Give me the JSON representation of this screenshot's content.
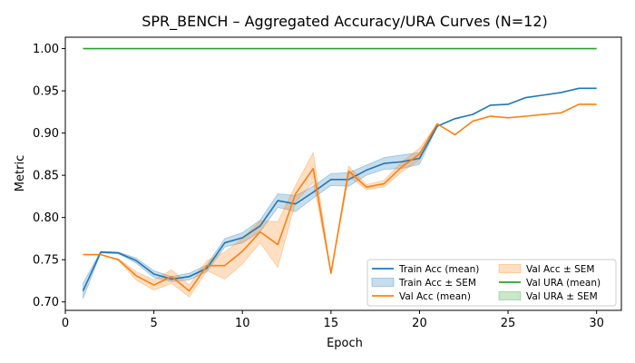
{
  "chart_data": {
    "type": "line",
    "title": "SPR_BENCH – Aggregated Accuracy/URA Curves (N=12)",
    "xlabel": "Epoch",
    "ylabel": "Metric",
    "xlim": [
      0,
      31.4
    ],
    "ylim": [
      0.69,
      1.0135
    ],
    "xticks": [
      0,
      5,
      10,
      15,
      20,
      25,
      30
    ],
    "yticks": [
      0.7,
      0.75,
      0.8,
      0.85,
      0.9,
      0.95,
      1.0
    ],
    "grid": false,
    "legend_position": "bottom-right",
    "x": [
      1,
      2,
      3,
      4,
      5,
      6,
      7,
      8,
      9,
      10,
      11,
      12,
      13,
      14,
      15,
      16,
      17,
      18,
      19,
      20,
      21,
      22,
      23,
      24,
      25,
      26,
      27,
      28,
      29,
      30
    ],
    "series": [
      {
        "name": "Train Acc (mean)",
        "band_name": "Train Acc ± SEM",
        "color": "#1f77b4",
        "values": [
          0.713,
          0.759,
          0.758,
          0.749,
          0.733,
          0.727,
          0.73,
          0.74,
          0.77,
          0.776,
          0.79,
          0.82,
          0.816,
          0.83,
          0.845,
          0.845,
          0.856,
          0.864,
          0.866,
          0.87,
          0.908,
          0.917,
          0.922,
          0.933,
          0.934,
          0.942,
          0.945,
          0.948,
          0.953,
          0.953
        ],
        "sem_lower": [
          0.704,
          0.758,
          0.757,
          0.746,
          0.729,
          0.724,
          0.726,
          0.736,
          0.765,
          0.77,
          0.783,
          0.812,
          0.807,
          0.823,
          0.838,
          0.837,
          0.85,
          0.857,
          0.858,
          0.863,
          0.908,
          0.917,
          0.922,
          0.933,
          0.934,
          0.942,
          0.945,
          0.948,
          0.953,
          0.953
        ],
        "sem_upper": [
          0.722,
          0.76,
          0.759,
          0.752,
          0.737,
          0.73,
          0.734,
          0.744,
          0.775,
          0.782,
          0.797,
          0.828,
          0.826,
          0.837,
          0.852,
          0.853,
          0.862,
          0.871,
          0.874,
          0.877,
          0.908,
          0.917,
          0.922,
          0.933,
          0.934,
          0.942,
          0.945,
          0.948,
          0.953,
          0.953
        ]
      },
      {
        "name": "Val Acc (mean)",
        "band_name": "Val Acc ± SEM",
        "color": "#ff7f0e",
        "values": [
          0.756,
          0.756,
          0.75,
          0.731,
          0.72,
          0.73,
          0.713,
          0.743,
          0.743,
          0.76,
          0.783,
          0.768,
          0.828,
          0.858,
          0.734,
          0.855,
          0.836,
          0.84,
          0.86,
          0.875,
          0.911,
          0.898,
          0.914,
          0.92,
          0.918,
          0.92,
          0.922,
          0.924,
          0.934,
          0.934
        ],
        "sem_lower": [
          0.756,
          0.756,
          0.749,
          0.726,
          0.714,
          0.722,
          0.706,
          0.737,
          0.727,
          0.745,
          0.77,
          0.741,
          0.818,
          0.842,
          0.734,
          0.849,
          0.833,
          0.836,
          0.854,
          0.868,
          0.911,
          0.898,
          0.914,
          0.92,
          0.918,
          0.92,
          0.922,
          0.924,
          0.934,
          0.934
        ],
        "sem_upper": [
          0.756,
          0.756,
          0.751,
          0.736,
          0.726,
          0.738,
          0.72,
          0.749,
          0.759,
          0.775,
          0.796,
          0.795,
          0.838,
          0.877,
          0.734,
          0.861,
          0.839,
          0.844,
          0.866,
          0.882,
          0.911,
          0.898,
          0.914,
          0.92,
          0.918,
          0.92,
          0.922,
          0.924,
          0.934,
          0.934
        ]
      },
      {
        "name": "Val URA (mean)",
        "band_name": "Val URA ± SEM",
        "color": "#2ca02c",
        "values": [
          1.0,
          1.0,
          1.0,
          1.0,
          1.0,
          1.0,
          1.0,
          1.0,
          1.0,
          1.0,
          1.0,
          1.0,
          1.0,
          1.0,
          1.0,
          1.0,
          1.0,
          1.0,
          1.0,
          1.0,
          1.0,
          1.0,
          1.0,
          1.0,
          1.0,
          1.0,
          1.0,
          1.0,
          1.0,
          1.0
        ],
        "sem_lower": [
          1.0,
          1.0,
          1.0,
          1.0,
          1.0,
          1.0,
          1.0,
          1.0,
          1.0,
          1.0,
          1.0,
          1.0,
          1.0,
          1.0,
          1.0,
          1.0,
          1.0,
          1.0,
          1.0,
          1.0,
          1.0,
          1.0,
          1.0,
          1.0,
          1.0,
          1.0,
          1.0,
          1.0,
          1.0,
          1.0
        ],
        "sem_upper": [
          1.0,
          1.0,
          1.0,
          1.0,
          1.0,
          1.0,
          1.0,
          1.0,
          1.0,
          1.0,
          1.0,
          1.0,
          1.0,
          1.0,
          1.0,
          1.0,
          1.0,
          1.0,
          1.0,
          1.0,
          1.0,
          1.0,
          1.0,
          1.0,
          1.0,
          1.0,
          1.0,
          1.0,
          1.0,
          1.0
        ]
      }
    ],
    "legend_order": [
      [
        "Train Acc (mean)",
        "line",
        "#1f77b4"
      ],
      [
        "Train Acc ± SEM",
        "band",
        "#1f77b4"
      ],
      [
        "Val Acc (mean)",
        "line",
        "#ff7f0e"
      ],
      [
        "Val Acc ± SEM",
        "band",
        "#ff7f0e"
      ],
      [
        "Val URA (mean)",
        "line",
        "#2ca02c"
      ],
      [
        "Val URA ± SEM",
        "band",
        "#2ca02c"
      ]
    ]
  }
}
